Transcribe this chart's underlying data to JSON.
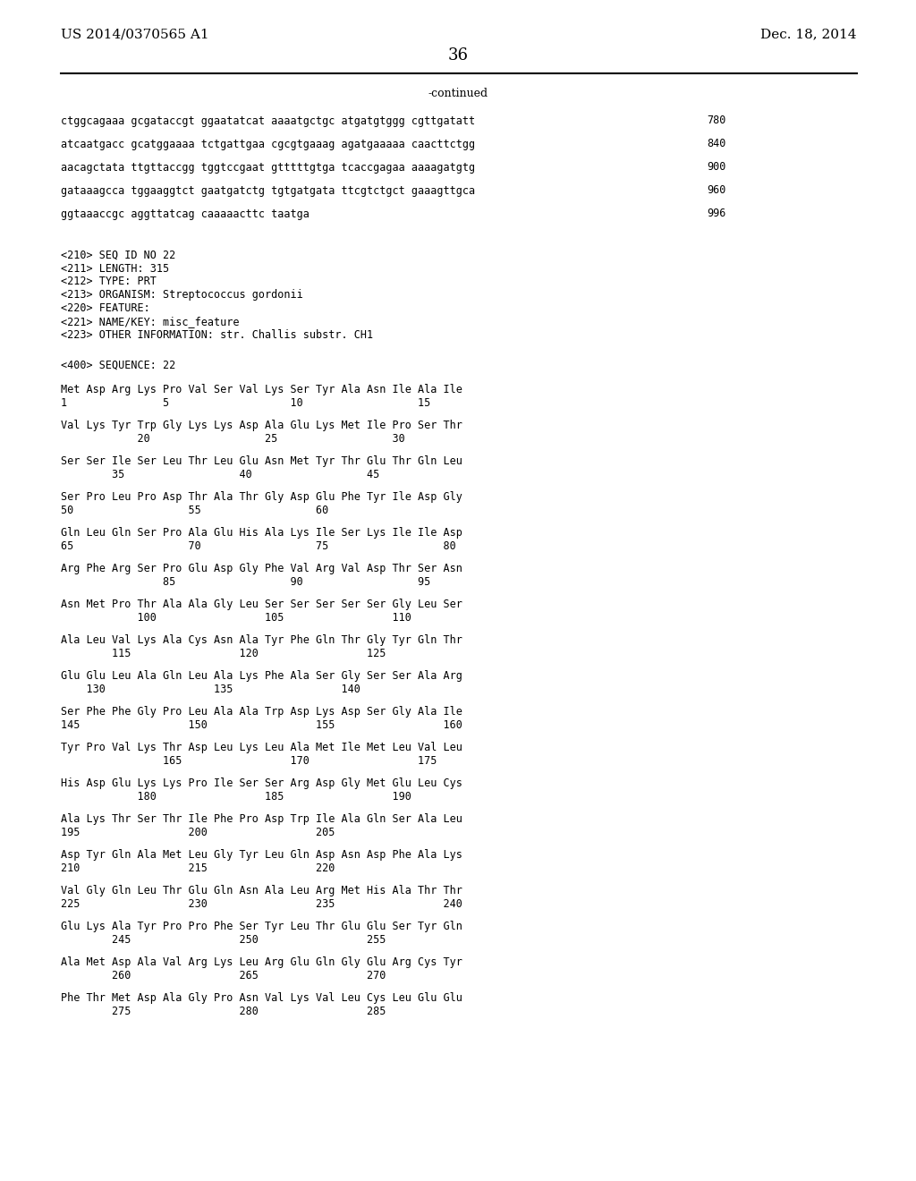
{
  "page_number": "36",
  "patent_number": "US 2014/0370565 A1",
  "patent_date": "Dec. 18, 2014",
  "continued_label": "-continued",
  "background_color": "#ffffff",
  "text_color": "#000000",
  "content_lines": [
    "ctggcagaaa gcgataccgt ggaatatcat aaaatgctgc atgatgtggg cgttgatatt",
    "atcaatgacc gcatggaaaa tctgattgaa cgcgtgaaag agatgaaaaa caacttctgg",
    "aacagctata ttgttaccgg tggtccgaat gtttttgtga tcaccgagaa aaaagatgtg",
    "gataaagcca tggaaggtct gaatgatctg tgtgatgata ttcgtctgct gaaagttgca",
    "ggtaaaccgc aggttatcag caaaaacttc taatga"
  ],
  "content_nums": [
    "780",
    "840",
    "900",
    "960",
    "996"
  ],
  "meta_lines": [
    "<210> SEQ ID NO 22",
    "<211> LENGTH: 315",
    "<212> TYPE: PRT",
    "<213> ORGANISM: Streptococcus gordonii",
    "<220> FEATURE:",
    "<221> NAME/KEY: misc_feature",
    "<223> OTHER INFORMATION: str. Challis substr. CH1"
  ],
  "seq_header": "<400> SEQUENCE: 22",
  "seq_blocks": [
    [
      "Met Asp Arg Lys Pro Val Ser Val Lys Ser Tyr Ala Asn Ile Ala Ile",
      "1               5                   10                  15"
    ],
    [
      "Val Lys Tyr Trp Gly Lys Lys Asp Ala Glu Lys Met Ile Pro Ser Thr",
      "            20                  25                  30"
    ],
    [
      "Ser Ser Ile Ser Leu Thr Leu Glu Asn Met Tyr Thr Glu Thr Gln Leu",
      "        35                  40                  45"
    ],
    [
      "Ser Pro Leu Pro Asp Thr Ala Thr Gly Asp Glu Phe Tyr Ile Asp Gly",
      "50                  55                  60"
    ],
    [
      "Gln Leu Gln Ser Pro Ala Glu His Ala Lys Ile Ser Lys Ile Ile Asp",
      "65                  70                  75                  80"
    ],
    [
      "Arg Phe Arg Ser Pro Glu Asp Gly Phe Val Arg Val Asp Thr Ser Asn",
      "                85                  90                  95"
    ],
    [
      "Asn Met Pro Thr Ala Ala Gly Leu Ser Ser Ser Ser Ser Gly Leu Ser",
      "            100                 105                 110"
    ],
    [
      "Ala Leu Val Lys Ala Cys Asn Ala Tyr Phe Gln Thr Gly Tyr Gln Thr",
      "        115                 120                 125"
    ],
    [
      "Glu Glu Leu Ala Gln Leu Ala Lys Phe Ala Ser Gly Ser Ser Ala Arg",
      "    130                 135                 140"
    ],
    [
      "Ser Phe Phe Gly Pro Leu Ala Ala Trp Asp Lys Asp Ser Gly Ala Ile",
      "145                 150                 155                 160"
    ],
    [
      "Tyr Pro Val Lys Thr Asp Leu Lys Leu Ala Met Ile Met Leu Val Leu",
      "                165                 170                 175"
    ],
    [
      "His Asp Glu Lys Lys Pro Ile Ser Ser Arg Asp Gly Met Glu Leu Cys",
      "            180                 185                 190"
    ],
    [
      "Ala Lys Thr Ser Thr Ile Phe Pro Asp Trp Ile Ala Gln Ser Ala Leu",
      "195                 200                 205"
    ],
    [
      "Asp Tyr Gln Ala Met Leu Gly Tyr Leu Gln Asp Asn Asp Phe Ala Lys",
      "210                 215                 220"
    ],
    [
      "Val Gly Gln Leu Thr Glu Gln Asn Ala Leu Arg Met His Ala Thr Thr",
      "225                 230                 235                 240"
    ],
    [
      "Glu Lys Ala Tyr Pro Pro Phe Ser Tyr Leu Thr Glu Glu Ser Tyr Gln",
      "        245                 250                 255"
    ],
    [
      "Ala Met Asp Ala Val Arg Lys Leu Arg Glu Gln Gly Glu Arg Cys Tyr",
      "        260                 265                 270"
    ],
    [
      "Phe Thr Met Asp Ala Gly Pro Asn Val Lys Val Leu Cys Leu Glu Glu",
      "        275                 280                 285"
    ]
  ]
}
